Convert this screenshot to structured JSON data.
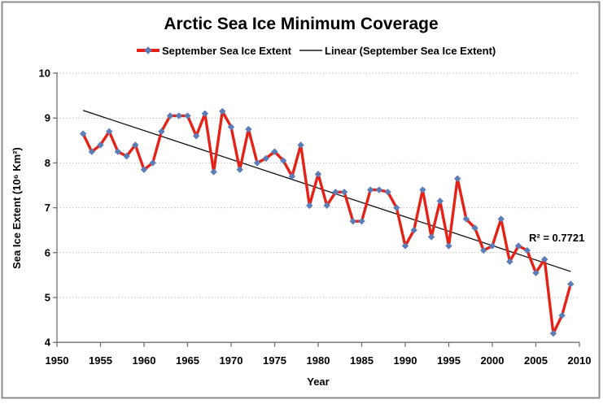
{
  "title": "Arctic Sea Ice Minimum Coverage",
  "legend": {
    "series_label": "September Sea Ice Extent",
    "trend_label": "Linear (September Sea Ice Extent)"
  },
  "axes": {
    "x_title": "Year",
    "y_title": "Sea Ice Extent (10⁶ Km²)",
    "x_ticks": [
      1950,
      1955,
      1960,
      1965,
      1970,
      1975,
      1980,
      1985,
      1990,
      1995,
      2000,
      2005,
      2010
    ],
    "y_ticks": [
      4,
      5,
      6,
      7,
      8,
      9,
      10
    ],
    "x_range": [
      1950,
      2010
    ],
    "y_range": [
      4,
      10
    ]
  },
  "annotation": {
    "r_squared": "R² = 0.7721"
  },
  "colors": {
    "series_line": "#e42217",
    "marker": "#5b7eb8",
    "trend_line": "#1c1c1c",
    "gridline": "#b0b0b0",
    "axis_line": "#6f6f6f",
    "border": "#8c8c8c",
    "text": "#000000",
    "background": "#ffffff"
  },
  "chart_data": {
    "type": "line",
    "title": "Arctic Sea Ice Minimum Coverage",
    "xlabel": "Year",
    "ylabel": "Sea Ice Extent (10⁶ Km²)",
    "xlim": [
      1950,
      2010
    ],
    "ylim": [
      4,
      10
    ],
    "grid": "horizontal-dotted",
    "legend_position": "top-center",
    "series": [
      {
        "name": "September Sea Ice Extent",
        "marker": "diamond",
        "x": [
          1953,
          1954,
          1955,
          1956,
          1957,
          1958,
          1959,
          1960,
          1961,
          1962,
          1963,
          1964,
          1965,
          1966,
          1967,
          1968,
          1969,
          1970,
          1971,
          1972,
          1973,
          1974,
          1975,
          1976,
          1977,
          1978,
          1979,
          1980,
          1981,
          1982,
          1983,
          1984,
          1985,
          1986,
          1987,
          1988,
          1989,
          1990,
          1991,
          1992,
          1993,
          1994,
          1995,
          1996,
          1997,
          1998,
          1999,
          2000,
          2001,
          2002,
          2003,
          2004,
          2005,
          2006,
          2007,
          2008,
          2009
        ],
        "values": [
          8.65,
          8.25,
          8.4,
          8.7,
          8.25,
          8.15,
          8.4,
          7.85,
          8.0,
          8.7,
          9.05,
          9.05,
          9.05,
          8.6,
          9.1,
          7.8,
          9.15,
          8.8,
          7.85,
          8.75,
          8.0,
          8.1,
          8.25,
          8.05,
          7.7,
          8.4,
          7.05,
          7.75,
          7.05,
          7.35,
          7.35,
          6.7,
          6.7,
          7.4,
          7.4,
          7.35,
          7.0,
          6.15,
          6.5,
          7.4,
          6.35,
          7.15,
          6.15,
          7.65,
          6.75,
          6.55,
          6.05,
          6.15,
          6.75,
          5.8,
          6.15,
          6.05,
          5.55,
          5.85,
          4.2,
          4.6,
          5.3
        ]
      }
    ],
    "trendline": {
      "name": "Linear (September Sea Ice Extent)",
      "r_squared": 0.7721,
      "x": [
        1953,
        2009
      ],
      "values": [
        9.17,
        5.58
      ]
    }
  }
}
